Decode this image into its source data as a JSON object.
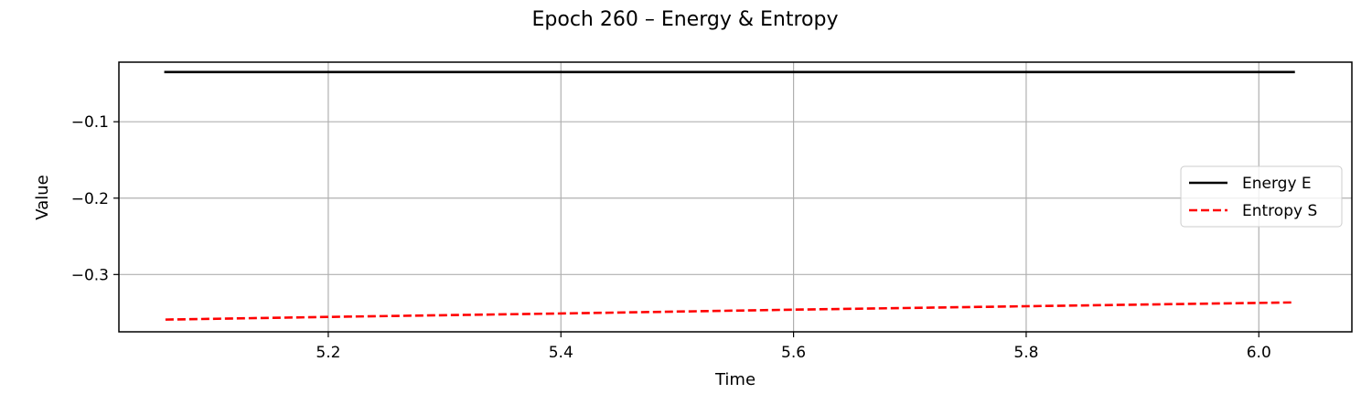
{
  "chart_data": {
    "type": "line",
    "title": "Epoch 260 – Energy & Entropy",
    "xlabel": "Time",
    "ylabel": "Value",
    "xlim": [
      5.02,
      6.08
    ],
    "ylim": [
      -0.375,
      -0.022
    ],
    "xticks": [
      5.2,
      5.4,
      5.6,
      5.8,
      6.0
    ],
    "xtick_labels": [
      "5.2",
      "5.4",
      "5.6",
      "5.8",
      "6.0"
    ],
    "yticks": [
      -0.1,
      -0.2,
      -0.3
    ],
    "ytick_labels": [
      "−0.1",
      "−0.2",
      "−0.3"
    ],
    "grid": true,
    "legend_position": "center-right",
    "series": [
      {
        "name": "Energy E",
        "color": "#000000",
        "style": "solid",
        "x": [
          5.06,
          6.03
        ],
        "y": [
          -0.035,
          -0.035
        ]
      },
      {
        "name": "Entropy S",
        "color": "#ff0000",
        "style": "dashed",
        "x": [
          5.06,
          5.2,
          5.4,
          5.6,
          5.8,
          6.03
        ],
        "y": [
          -0.359,
          -0.3555,
          -0.351,
          -0.346,
          -0.3415,
          -0.3365
        ]
      }
    ]
  }
}
